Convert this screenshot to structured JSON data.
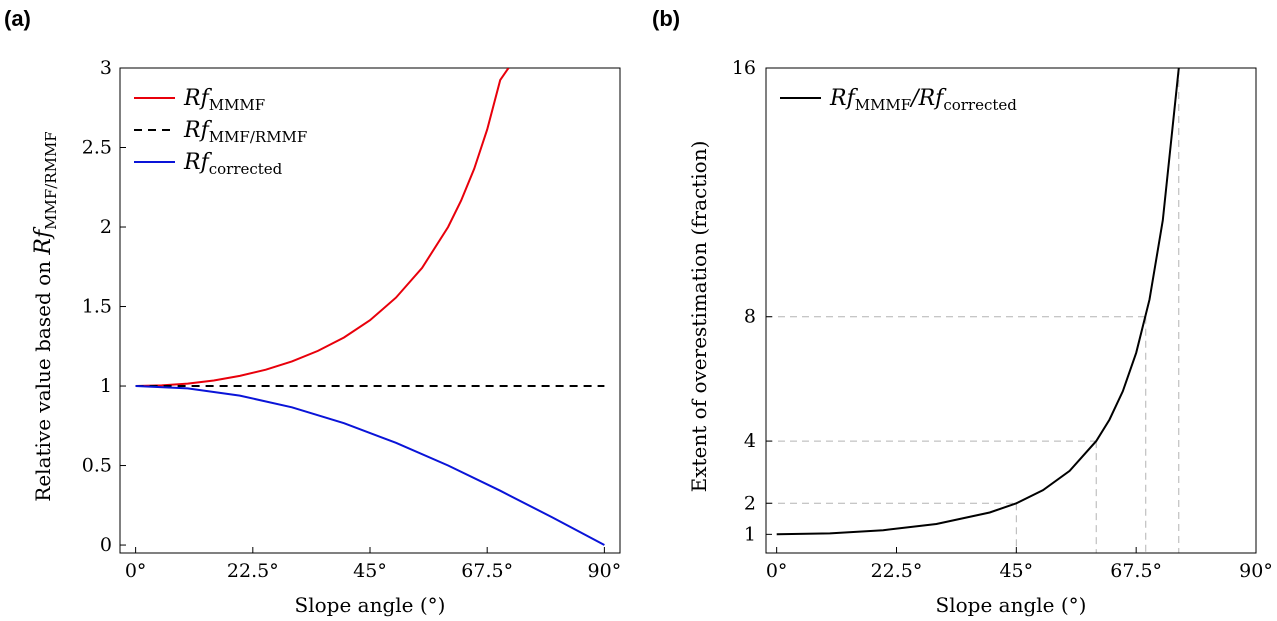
{
  "panels": {
    "a": {
      "label": "(a)"
    },
    "b": {
      "label": "(b)"
    }
  },
  "chart_data": [
    {
      "type": "line",
      "xlabel": "Slope angle (°)",
      "ylabel_prefix": "Relative value based on ",
      "ylabel_main": "Rf",
      "ylabel_sub": "MMF/RMMF",
      "x_ticks": [
        "0°",
        "22.5°",
        "45°",
        "67.5°",
        "90°"
      ],
      "x_tick_values": [
        0,
        22.5,
        45,
        67.5,
        90
      ],
      "y_ticks": [
        "0",
        "0.5",
        "1",
        "1.5",
        "2",
        "2.5",
        "3"
      ],
      "y_tick_values": [
        0,
        0.5,
        1,
        1.5,
        2,
        2.5,
        3
      ],
      "xlim": [
        -3,
        93
      ],
      "ylim": [
        -0.05,
        3
      ],
      "legend_position": "top-left",
      "series": [
        {
          "name": "Rf",
          "name_sub": "MMMF",
          "color": "#e8000b",
          "dash": "solid",
          "x": [
            0,
            5,
            10,
            15,
            20,
            25,
            30,
            35,
            40,
            45,
            50,
            55,
            60,
            62.5,
            65,
            67.5,
            70,
            71.6
          ],
          "y": [
            1.0,
            1.004,
            1.015,
            1.035,
            1.064,
            1.103,
            1.155,
            1.221,
            1.305,
            1.414,
            1.556,
            1.743,
            2.0,
            2.166,
            2.366,
            2.613,
            2.924,
            3.0
          ]
        },
        {
          "name": "Rf",
          "name_sub": "MMF/RMMF",
          "color": "#000000",
          "dash": "dashed",
          "x": [
            0,
            90
          ],
          "y": [
            1,
            1
          ]
        },
        {
          "name": "Rf",
          "name_sub": "corrected",
          "color": "#0a14d8",
          "dash": "solid",
          "x": [
            0,
            10,
            20,
            30,
            40,
            50,
            60,
            70,
            80,
            90
          ],
          "y": [
            1.0,
            0.985,
            0.94,
            0.866,
            0.766,
            0.643,
            0.5,
            0.342,
            0.174,
            0.0
          ]
        }
      ]
    },
    {
      "type": "line",
      "xlabel": "Slope angle (°)",
      "ylabel": "Extent of overestimation (fraction)",
      "x_ticks": [
        "0°",
        "22.5°",
        "45°",
        "67.5°",
        "90°"
      ],
      "x_tick_values": [
        0,
        22.5,
        45,
        67.5,
        90
      ],
      "y_ticks": [
        "1",
        "2",
        "4",
        "8",
        "16"
      ],
      "y_tick_values": [
        1,
        2,
        4,
        8,
        16
      ],
      "xlim": [
        -2,
        90
      ],
      "ylim": [
        0.4,
        16
      ],
      "legend_position": "top-left",
      "series": [
        {
          "name": "Rf",
          "name_sub": "MMMF",
          "name2": "/Rf",
          "name2_sub": "corrected",
          "color": "#000000",
          "dash": "solid",
          "x": [
            0,
            10,
            20,
            30,
            40,
            45,
            50,
            55,
            60,
            62.5,
            65,
            67.5,
            70,
            72.5,
            75.5
          ],
          "y": [
            1.0,
            1.031,
            1.132,
            1.333,
            1.704,
            2.0,
            2.42,
            3.04,
            4.0,
            4.69,
            5.6,
            6.84,
            8.55,
            11.1,
            16.0
          ]
        }
      ],
      "guide_points": [
        {
          "x": 45,
          "y": 2
        },
        {
          "x": 60,
          "y": 4
        },
        {
          "x": 69.3,
          "y": 8
        },
        {
          "x": 75.5,
          "y": 16
        }
      ]
    }
  ]
}
